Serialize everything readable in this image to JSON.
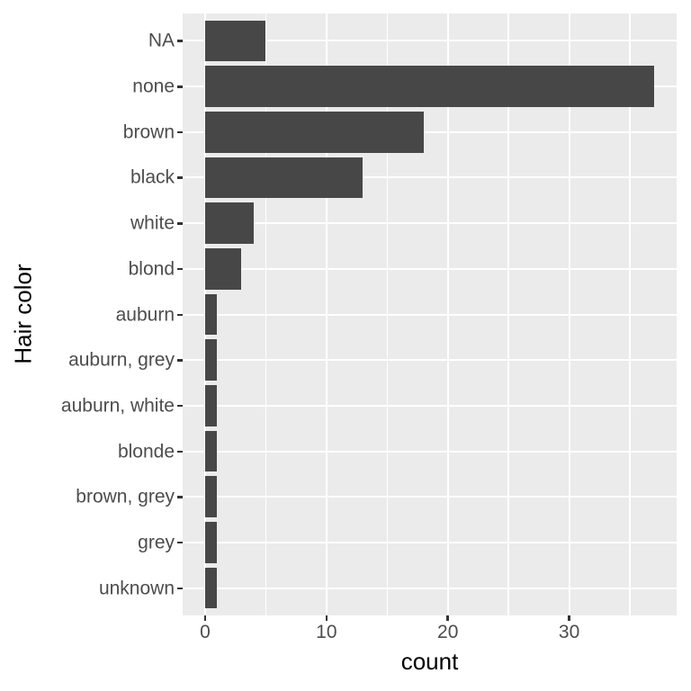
{
  "chart_data": {
    "type": "bar",
    "orientation": "horizontal",
    "title": "",
    "xlabel": "count",
    "ylabel": "Hair color",
    "categories": [
      "NA",
      "none",
      "brown",
      "black",
      "white",
      "blond",
      "auburn",
      "auburn, grey",
      "auburn, white",
      "blonde",
      "brown, grey",
      "grey",
      "unknown"
    ],
    "values": [
      5,
      37,
      18,
      13,
      4,
      3,
      1,
      1,
      1,
      1,
      1,
      1,
      1
    ],
    "xlim": [
      -1.85,
      38.85
    ],
    "x_major_ticks": [
      0,
      10,
      20,
      30
    ],
    "x_minor_ticks": [
      5,
      15,
      25,
      35
    ],
    "grid": "x-major, x-minor, y-major",
    "legend_position": "none",
    "style": {
      "bar_fill": "#474747",
      "panel_background": "#EBEBEB",
      "grid_color": "#FFFFFF",
      "tick_mark_color": "#333333",
      "tick_label_color": "#4D4D4D",
      "axis_title_color": "#000000",
      "figure_background": "#FFFFFF"
    }
  }
}
